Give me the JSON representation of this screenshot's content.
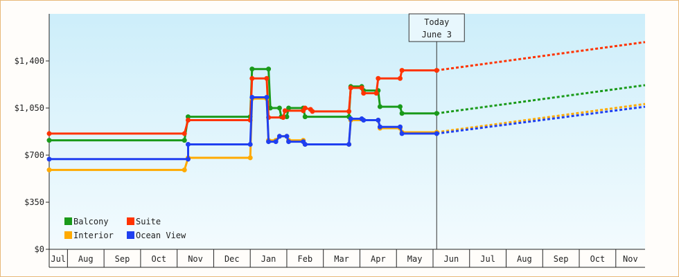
{
  "chart_data": {
    "type": "line",
    "title": "",
    "xlabel": "",
    "ylabel": "",
    "ylim": [
      0,
      1750
    ],
    "y_ticks": [
      {
        "value": 0,
        "label": "$0"
      },
      {
        "value": 350,
        "label": "$350"
      },
      {
        "value": 700,
        "label": "$700"
      },
      {
        "value": 1050,
        "label": "$1,050"
      },
      {
        "value": 1400,
        "label": "$1,400"
      }
    ],
    "x_months": [
      "Jul",
      "Aug",
      "Sep",
      "Oct",
      "Nov",
      "Dec",
      "Jan",
      "Feb",
      "Mar",
      "Apr",
      "May",
      "Jun",
      "Jul",
      "Aug",
      "Sep",
      "Oct",
      "Nov"
    ],
    "xlim": [
      0,
      16.3
    ],
    "today": {
      "label_line1": "Today",
      "label_line2": "June 3",
      "x": 10.6
    },
    "grid": "vertical month dividers",
    "legend_placement": "bottom-left",
    "series": [
      {
        "name": "Balcony",
        "color": "#1a9a1a",
        "points": [
          [
            0,
            810
          ],
          [
            3.7,
            810
          ],
          [
            3.8,
            985
          ],
          [
            5.5,
            985
          ],
          [
            5.55,
            1340
          ],
          [
            6.0,
            1340
          ],
          [
            6.05,
            1050
          ],
          [
            6.3,
            1050
          ],
          [
            6.35,
            985
          ],
          [
            6.5,
            985
          ],
          [
            6.55,
            1050
          ],
          [
            6.95,
            1050
          ],
          [
            7.0,
            985
          ],
          [
            8.2,
            985
          ],
          [
            8.25,
            1210
          ],
          [
            8.55,
            1210
          ],
          [
            8.6,
            1180
          ],
          [
            9.0,
            1180
          ],
          [
            9.05,
            1060
          ],
          [
            9.6,
            1060
          ],
          [
            9.65,
            1010
          ],
          [
            10.6,
            1010
          ]
        ],
        "forecast": [
          [
            10.6,
            1010
          ],
          [
            16.3,
            1220
          ]
        ]
      },
      {
        "name": "Suite",
        "color": "#ff3300",
        "points": [
          [
            0,
            860
          ],
          [
            3.7,
            860
          ],
          [
            3.8,
            960
          ],
          [
            5.5,
            960
          ],
          [
            5.55,
            1270
          ],
          [
            5.95,
            1270
          ],
          [
            6.0,
            980
          ],
          [
            6.4,
            980
          ],
          [
            6.45,
            1030
          ],
          [
            6.95,
            1030
          ],
          [
            7.0,
            1050
          ],
          [
            7.15,
            1040
          ],
          [
            7.2,
            1025
          ],
          [
            8.2,
            1025
          ],
          [
            8.25,
            1200
          ],
          [
            8.55,
            1200
          ],
          [
            8.6,
            1160
          ],
          [
            8.95,
            1160
          ],
          [
            9.0,
            1270
          ],
          [
            9.6,
            1270
          ],
          [
            9.65,
            1330
          ],
          [
            10.6,
            1330
          ]
        ],
        "forecast": [
          [
            10.6,
            1330
          ],
          [
            16.3,
            1540
          ]
        ]
      },
      {
        "name": "Interior",
        "color": "#ffaa00",
        "points": [
          [
            0,
            590
          ],
          [
            3.7,
            590
          ],
          [
            3.8,
            680
          ],
          [
            5.5,
            680
          ],
          [
            5.55,
            1120
          ],
          [
            5.95,
            1120
          ],
          [
            6.0,
            810
          ],
          [
            6.2,
            810
          ],
          [
            6.3,
            840
          ],
          [
            6.5,
            840
          ],
          [
            6.55,
            810
          ],
          [
            6.95,
            810
          ],
          [
            7.0,
            780
          ],
          [
            7.3,
            780
          ],
          [
            8.2,
            780
          ],
          [
            8.25,
            960
          ],
          [
            9.0,
            960
          ],
          [
            9.05,
            900
          ],
          [
            9.6,
            900
          ],
          [
            9.65,
            870
          ],
          [
            10.6,
            870
          ]
        ],
        "forecast": [
          [
            10.6,
            870
          ],
          [
            16.3,
            1080
          ]
        ]
      },
      {
        "name": "Ocean View",
        "color": "#1f3ff0",
        "points": [
          [
            0,
            670
          ],
          [
            3.8,
            670
          ],
          [
            3.8,
            780
          ],
          [
            5.5,
            780
          ],
          [
            5.55,
            1130
          ],
          [
            5.95,
            1130
          ],
          [
            6.0,
            800
          ],
          [
            6.2,
            800
          ],
          [
            6.3,
            840
          ],
          [
            6.5,
            840
          ],
          [
            6.55,
            800
          ],
          [
            6.95,
            800
          ],
          [
            7.0,
            780
          ],
          [
            8.2,
            780
          ],
          [
            8.25,
            970
          ],
          [
            8.55,
            970
          ],
          [
            8.6,
            960
          ],
          [
            9.0,
            960
          ],
          [
            9.05,
            910
          ],
          [
            9.6,
            910
          ],
          [
            9.65,
            860
          ],
          [
            10.6,
            860
          ]
        ],
        "forecast": [
          [
            10.6,
            860
          ],
          [
            16.3,
            1060
          ]
        ]
      }
    ]
  }
}
